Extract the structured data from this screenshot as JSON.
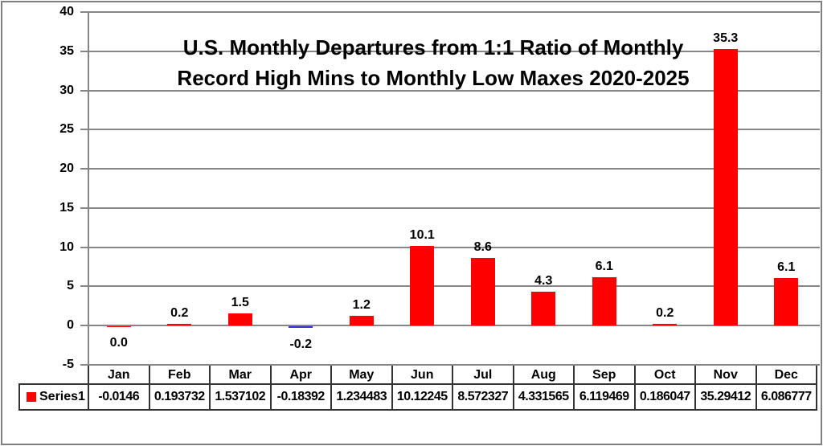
{
  "chart_data": {
    "type": "bar",
    "title": "U.S. Monthly Departures from 1:1 Ratio of Monthly Record High Mins to Monthly Low Maxes 2020-2025",
    "title_lines": [
      "U.S. Monthly Departures from 1:1 Ratio of Monthly",
      "Record High Mins to Monthly Low Maxes 2020-2025"
    ],
    "categories": [
      "Jan",
      "Feb",
      "Mar",
      "Apr",
      "May",
      "Jun",
      "Jul",
      "Aug",
      "Sep",
      "Oct",
      "Nov",
      "Dec"
    ],
    "series": [
      {
        "name": "Series1",
        "values": [
          -0.0146,
          0.193732,
          1.537102,
          -0.18392,
          1.234483,
          10.12245,
          8.572327,
          4.331565,
          6.119469,
          0.186047,
          35.29412,
          6.086777
        ]
      }
    ],
    "bar_labels": [
      "0.0",
      "0.2",
      "1.5",
      "-0.2",
      "1.2",
      "10.1",
      "8.6",
      "4.3",
      "6.1",
      "0.2",
      "35.3",
      "6.1"
    ],
    "table_values": [
      "-0.0146",
      "0.193732",
      "1.537102",
      "-0.18392",
      "1.234483",
      "10.12245",
      "8.572327",
      "4.331565",
      "6.119469",
      "0.186047",
      "35.29412",
      "6.086777"
    ],
    "y_ticks": [
      40,
      35,
      30,
      25,
      20,
      15,
      10,
      5,
      0,
      -5
    ],
    "ylim": [
      -5,
      40
    ],
    "grid": true,
    "legend_position": "data-table-left",
    "bar_colors": [
      "#FE0000",
      "#FE0000",
      "#FE0000",
      "#3434CF",
      "#FE0000",
      "#FE0000",
      "#FE0000",
      "#FE0000",
      "#FE0000",
      "#FE0000",
      "#FE0000",
      "#FE0000"
    ],
    "colors": {
      "bar": "#FE0000",
      "negative_apr_bar": "#3434CF",
      "gridline": "#868686",
      "table_border": "#333333",
      "legend_marker": "#FE0000",
      "frame_border": "#7F7F7F",
      "text": "#000000"
    }
  }
}
